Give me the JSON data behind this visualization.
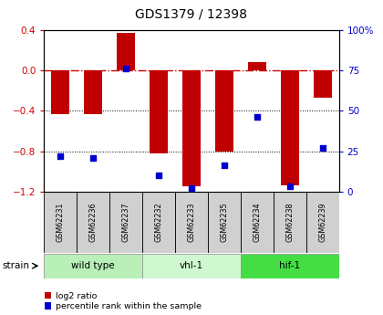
{
  "title": "GDS1379 / 12398",
  "samples": [
    "GSM62231",
    "GSM62236",
    "GSM62237",
    "GSM62232",
    "GSM62233",
    "GSM62235",
    "GSM62234",
    "GSM62238",
    "GSM62239"
  ],
  "log2_ratio": [
    -0.43,
    -0.43,
    0.37,
    -0.82,
    -1.15,
    -0.8,
    0.08,
    -1.14,
    -0.27
  ],
  "percentile_rank": [
    22,
    21,
    76,
    10,
    2,
    16,
    46,
    3,
    27
  ],
  "bar_color": "#c00000",
  "dot_color": "#0000cc",
  "groups": [
    {
      "label": "wild type",
      "start": 0,
      "end": 3,
      "color": "#b8f0b8"
    },
    {
      "label": "vhl-1",
      "start": 3,
      "end": 6,
      "color": "#d0f8d0"
    },
    {
      "label": "hif-1",
      "start": 6,
      "end": 9,
      "color": "#44dd44"
    }
  ],
  "ylim_left": [
    -1.2,
    0.4
  ],
  "ylim_right": [
    0,
    100
  ],
  "left_tick_color": "#cc0000",
  "right_tick_color": "#0000cc",
  "yticks_left": [
    -1.2,
    -0.8,
    -0.4,
    0.0,
    0.4
  ],
  "yticks_right": [
    0,
    25,
    50,
    75,
    100
  ],
  "ytick_labels_right": [
    "0",
    "25",
    "50",
    "75",
    "100%"
  ],
  "hline_color": "#cc0000",
  "bar_width": 0.55,
  "strain_label": "strain",
  "legend_items": [
    {
      "color": "#c00000",
      "label": "log2 ratio"
    },
    {
      "color": "#0000cc",
      "label": "percentile rank within the sample"
    }
  ]
}
